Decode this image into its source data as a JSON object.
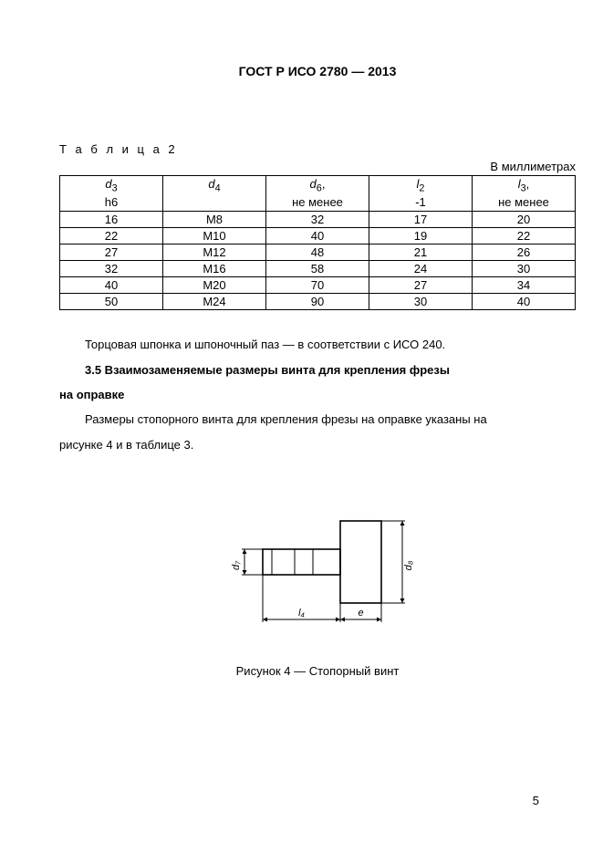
{
  "header": "ГОСТ Р ИСО 2780 — 2013",
  "table2": {
    "label": "Т а б л и ц а 2",
    "units": "В миллиметрах",
    "columns": [
      {
        "sym": "d",
        "sub": "3",
        "extra": "h6"
      },
      {
        "sym": "d",
        "sub": "4",
        "extra": ""
      },
      {
        "sym": "d",
        "sub": "6",
        "extra": "не менее"
      },
      {
        "sym": "l",
        "sub": "2",
        "extra": "-1"
      },
      {
        "sym": "l",
        "sub": "3",
        "extra": "не менее"
      }
    ],
    "rows": [
      [
        "16",
        "M8",
        "32",
        "17",
        "20"
      ],
      [
        "22",
        "M10",
        "40",
        "19",
        "22"
      ],
      [
        "27",
        "M12",
        "48",
        "21",
        "26"
      ],
      [
        "32",
        "M16",
        "58",
        "24",
        "30"
      ],
      [
        "40",
        "M20",
        "70",
        "27",
        "34"
      ],
      [
        "50",
        "M24",
        "90",
        "30",
        "40"
      ]
    ]
  },
  "paragraphs": {
    "p1": "Торцовая шпонка и шпоночный паз — в соответствии с ИСО 240.",
    "p2": "3.5 Взаимозаменяемые размеры винта  для крепления фрезы",
    "p2b": "на оправке",
    "p3": "Размеры стопорного винта для крепления фрезы на оправке указаны на",
    "p3b": "рисунке 4 и в таблице 3."
  },
  "figure": {
    "caption": "Рисунок 4 — Стопорный винт",
    "labels": {
      "d7": "d₇",
      "d8": "d₈",
      "l4": "l₄",
      "e": "e"
    },
    "style": {
      "stroke": "#000000",
      "line_width_heavy": 1.6,
      "line_width_light": 1.0,
      "arrow_size": 5
    }
  },
  "pageNumber": "5",
  "colors": {
    "text": "#000000",
    "bg": "#ffffff"
  }
}
